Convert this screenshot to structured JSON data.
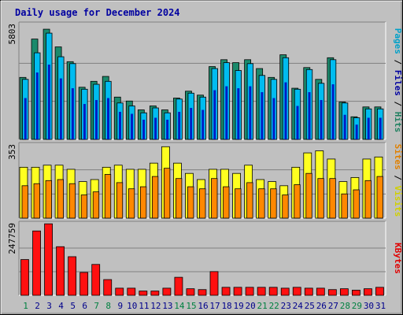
{
  "title": "Daily usage for December 2024",
  "chart_data": [
    {
      "type": "bar",
      "panel": "top",
      "ymax_label": "5803",
      "ylim": [
        0,
        5803
      ],
      "right_labels": [
        {
          "text": "Pages",
          "color": "#00a0c8"
        },
        {
          "text": " / ",
          "color": "#000000"
        },
        {
          "text": "Files",
          "color": "#0000a0"
        },
        {
          "text": " / ",
          "color": "#000000"
        },
        {
          "text": "Hits",
          "color": "#208060"
        }
      ],
      "categories": [
        "1",
        "2",
        "3",
        "4",
        "5",
        "6",
        "7",
        "8",
        "9",
        "10",
        "11",
        "12",
        "13",
        "14",
        "15",
        "16",
        "17",
        "18",
        "19",
        "20",
        "21",
        "22",
        "23",
        "24",
        "25",
        "26",
        "27",
        "28",
        "29",
        "30",
        "31"
      ],
      "series": [
        {
          "key": "hits",
          "color": "#1b8a6c",
          "values": [
            3150,
            5100,
            5600,
            4700,
            3950,
            2650,
            2950,
            3200,
            2150,
            1950,
            1500,
            1700,
            1500,
            2100,
            2450,
            2250,
            3700,
            4050,
            3900,
            4050,
            3600,
            3150,
            4300,
            2600,
            3650,
            3050,
            4150,
            1900,
            1150,
            1650,
            1650
          ]
        },
        {
          "key": "files",
          "color": "#0000c0",
          "values": [
            2100,
            3400,
            3800,
            3100,
            2600,
            1800,
            2000,
            2100,
            1400,
            1300,
            1000,
            1100,
            1000,
            1400,
            1600,
            1500,
            2500,
            2700,
            2600,
            2700,
            2400,
            2100,
            2900,
            1700,
            2400,
            2000,
            2800,
            1250,
            750,
            1100,
            1100
          ]
        },
        {
          "key": "pages",
          "color": "#00bcf0",
          "values": [
            3050,
            4400,
            5400,
            4200,
            3850,
            2550,
            2800,
            2950,
            1850,
            1700,
            1350,
            1600,
            1350,
            2050,
            2350,
            2150,
            3600,
            3900,
            3500,
            3850,
            3250,
            3050,
            4150,
            2550,
            3550,
            2850,
            4050,
            1850,
            1100,
            1550,
            1550
          ]
        }
      ]
    },
    {
      "type": "bar",
      "panel": "middle",
      "ymax_label": "353",
      "ylim": [
        0,
        353
      ],
      "right_labels": [
        {
          "text": "Sites",
          "color": "#e08000"
        },
        {
          "text": " / ",
          "color": "#000000"
        },
        {
          "text": "Visits",
          "color": "#d0d000"
        }
      ],
      "categories": [
        "1",
        "2",
        "3",
        "4",
        "5",
        "6",
        "7",
        "8",
        "9",
        "10",
        "11",
        "12",
        "13",
        "14",
        "15",
        "16",
        "17",
        "18",
        "19",
        "20",
        "21",
        "22",
        "23",
        "24",
        "25",
        "26",
        "27",
        "28",
        "29",
        "30",
        "31"
      ],
      "series": [
        {
          "key": "visits",
          "color": "#ffff20",
          "values": [
            248,
            248,
            258,
            258,
            238,
            178,
            188,
            248,
            258,
            238,
            238,
            268,
            348,
            268,
            218,
            188,
            238,
            238,
            218,
            258,
            188,
            178,
            158,
            248,
            318,
            328,
            288,
            178,
            198,
            288,
            298
          ]
        },
        {
          "key": "sites",
          "color": "#ff8800",
          "values": [
            158,
            168,
            183,
            188,
            168,
            113,
            128,
            213,
            173,
            143,
            153,
            203,
            243,
            193,
            153,
            143,
            193,
            153,
            143,
            173,
            143,
            143,
            113,
            163,
            218,
            193,
            193,
            118,
            138,
            183,
            203
          ]
        }
      ]
    },
    {
      "type": "bar",
      "panel": "bottom",
      "ymax_label": "247759",
      "ylim": [
        0,
        247759
      ],
      "right_labels": [
        {
          "text": "KBytes",
          "color": "#e00000"
        }
      ],
      "categories": [
        "1",
        "2",
        "3",
        "4",
        "5",
        "6",
        "7",
        "8",
        "9",
        "10",
        "11",
        "12",
        "13",
        "14",
        "15",
        "16",
        "17",
        "18",
        "19",
        "20",
        "21",
        "22",
        "23",
        "24",
        "25",
        "26",
        "27",
        "28",
        "29",
        "30",
        "31"
      ],
      "series": [
        {
          "key": "kbytes",
          "color": "#ff1010",
          "values": [
            125000,
            225000,
            250000,
            170000,
            135000,
            80000,
            108000,
            55000,
            25000,
            25000,
            15000,
            15000,
            25000,
            63000,
            23000,
            20000,
            83000,
            28000,
            28000,
            28000,
            28000,
            28000,
            25000,
            28000,
            25000,
            25000,
            20000,
            23000,
            18000,
            23000,
            28000
          ]
        }
      ]
    }
  ],
  "x_day_colors": {
    "weekday": "#00008b",
    "weekend": "#008040"
  },
  "weekend_days": [
    "1",
    "7",
    "8",
    "14",
    "15",
    "21",
    "22",
    "28",
    "29"
  ]
}
